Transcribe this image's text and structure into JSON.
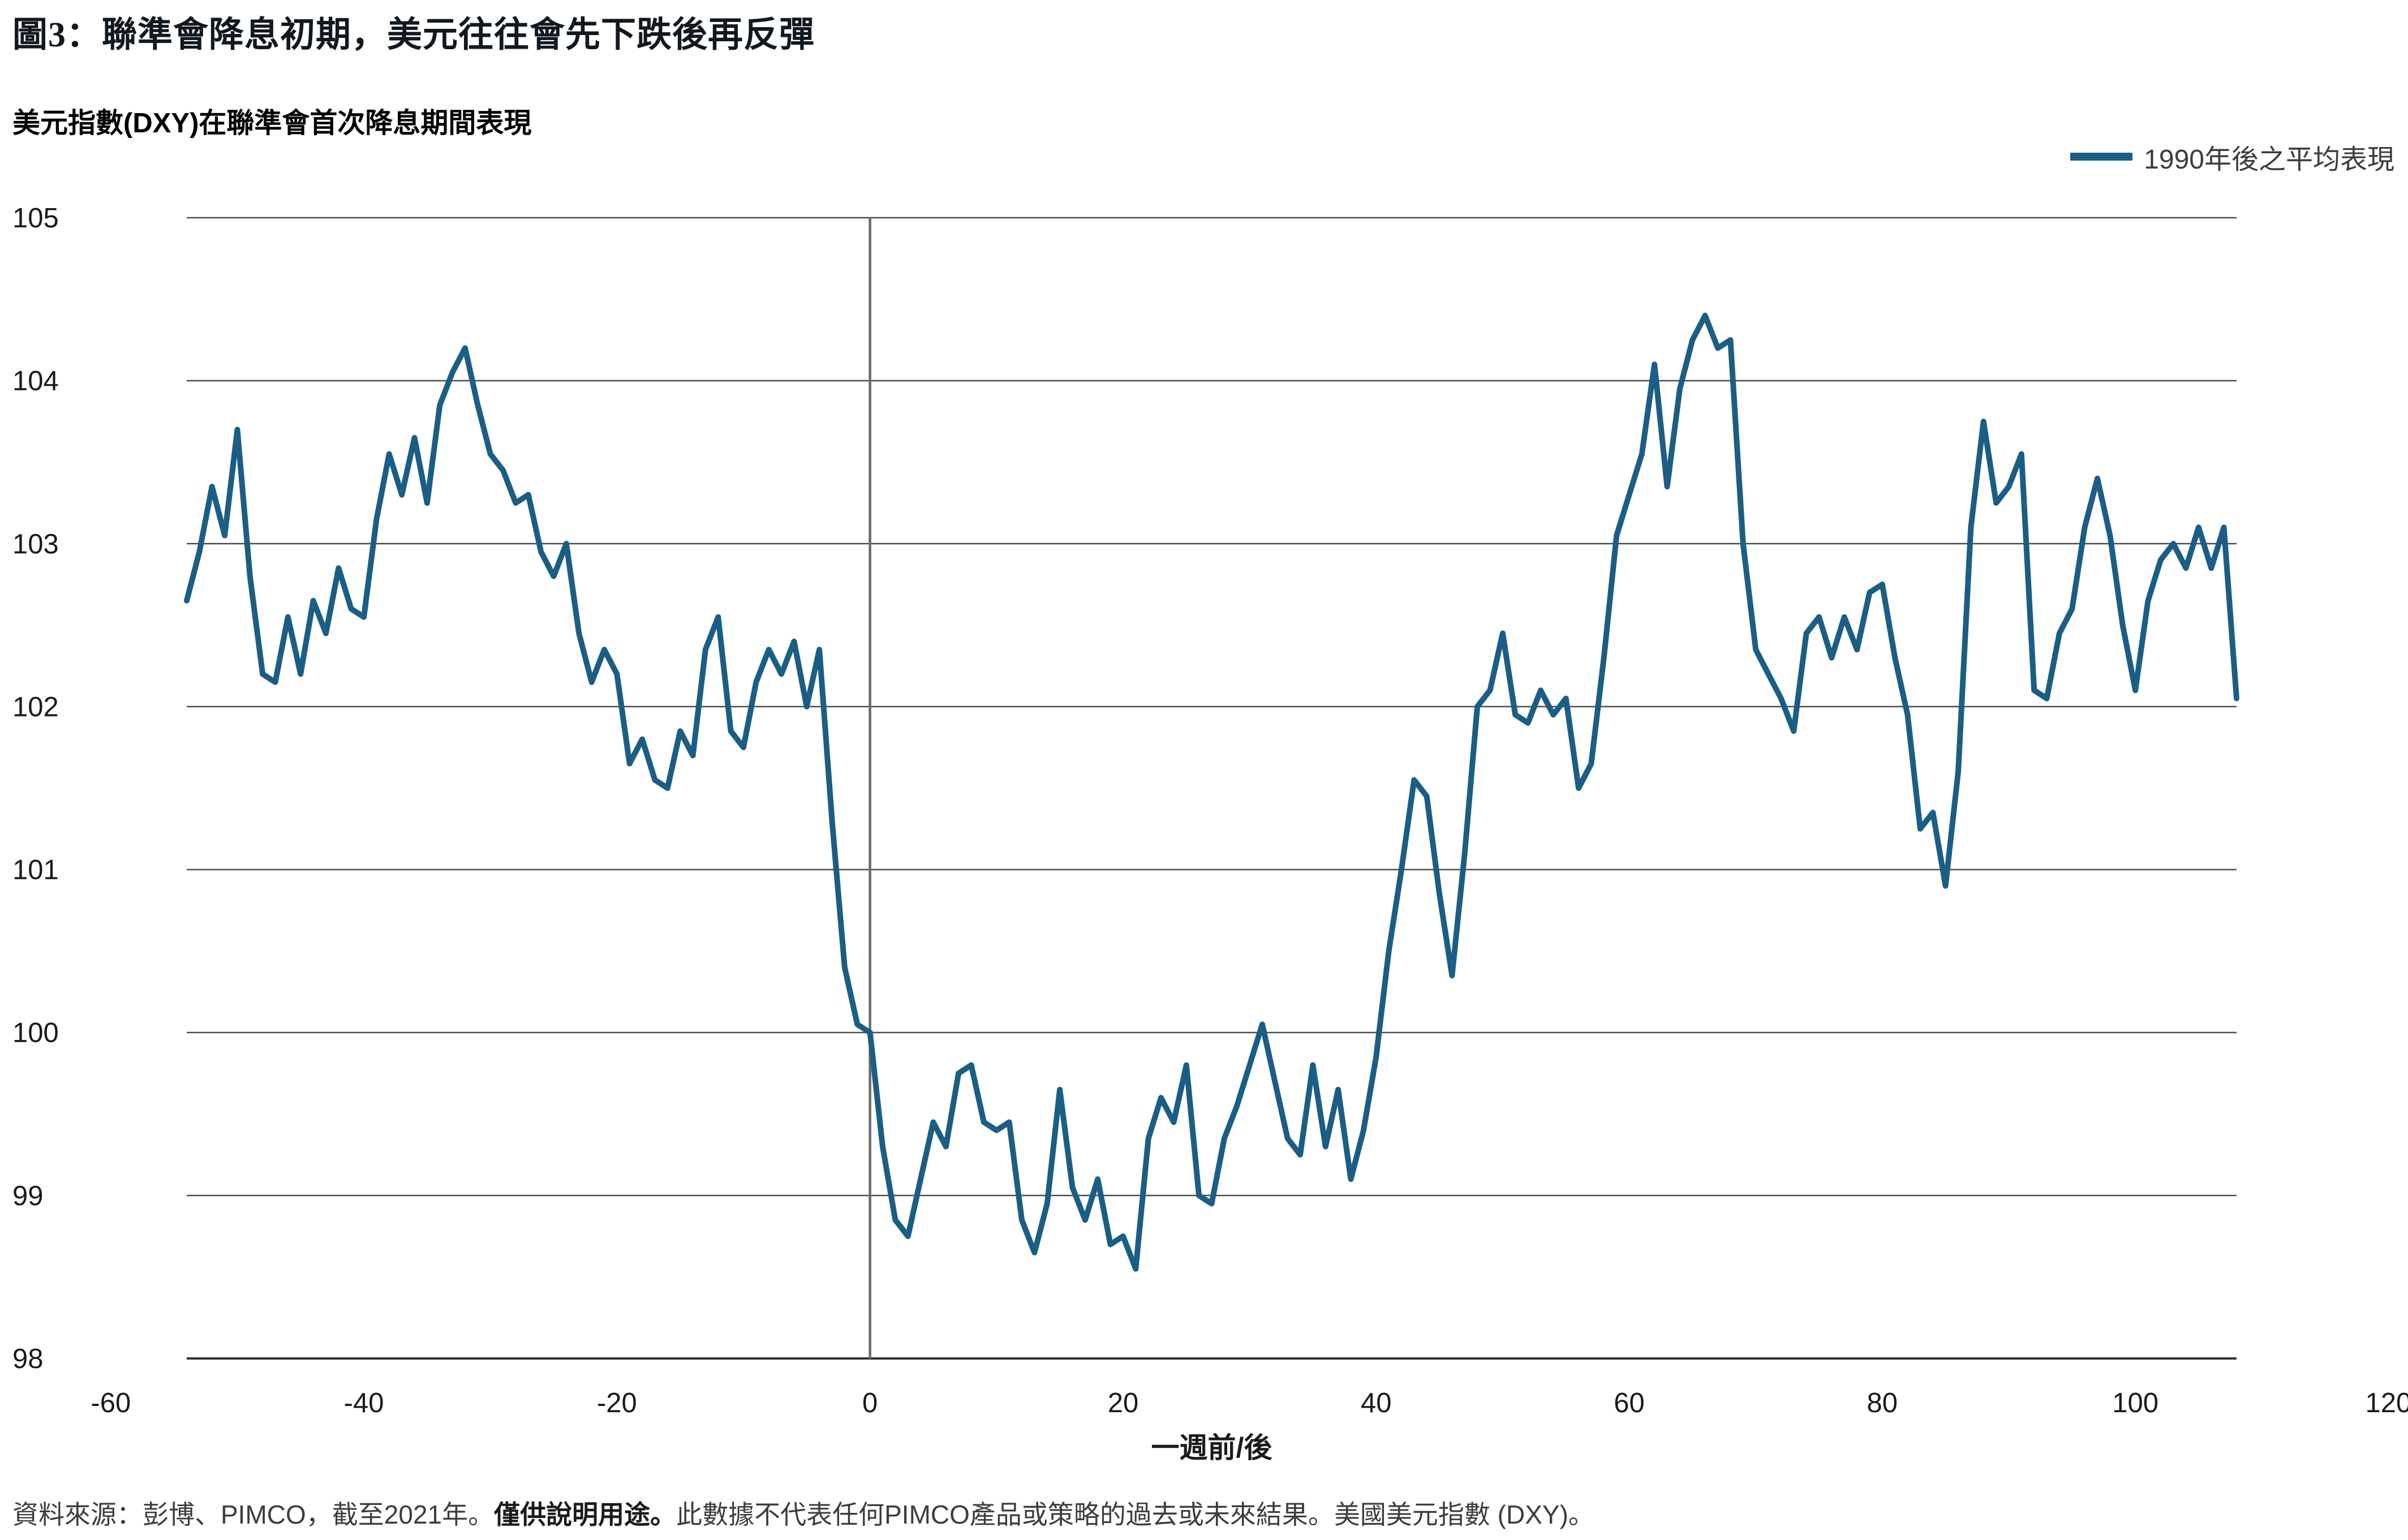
{
  "header": {
    "title": "圖3：聯準會降息初期，美元往往會先下跌後再反彈",
    "subtitle": "美元指數(DXY)在聯準會首次降息期間表現"
  },
  "legend": {
    "label": "1990年後之平均表現"
  },
  "footer": {
    "prefix": "資料來源：彭博、PIMCO，截至2021年。",
    "bold": "僅供說明用途。",
    "suffix": "此數據不代表任何PIMCO產品或策略的過去或未來結果。美國美元指數 (DXY)。"
  },
  "colors": {
    "line": "#1A5E85",
    "grid": "#4d4d4d",
    "axis": "#333333",
    "zero_line": "#6a6a6a",
    "text": "#1a1a1a"
  },
  "chart_data": {
    "type": "line",
    "title": "美元指數(DXY)在聯準會首次降息期間表現",
    "xlabel": "一週前/後",
    "ylabel": "",
    "xlim": [
      -60,
      120
    ],
    "ylim": [
      98,
      105
    ],
    "xticks": [
      -60,
      -40,
      -20,
      0,
      20,
      40,
      60,
      80,
      100,
      120
    ],
    "yticks": [
      98,
      99,
      100,
      101,
      102,
      103,
      104,
      105
    ],
    "grid": "horizontal",
    "zero_line_x": 0,
    "legend_position": "top-right",
    "series": [
      {
        "name": "1990年後之平均表現",
        "x": [
          -54,
          -53,
          -52,
          -51,
          -50,
          -49,
          -48,
          -47,
          -46,
          -45,
          -44,
          -43,
          -42,
          -41,
          -40,
          -39,
          -38,
          -37,
          -36,
          -35,
          -34,
          -33,
          -32,
          -31,
          -30,
          -29,
          -28,
          -27,
          -26,
          -25,
          -24,
          -23,
          -22,
          -21,
          -20,
          -19,
          -18,
          -17,
          -16,
          -15,
          -14,
          -13,
          -12,
          -11,
          -10,
          -9,
          -8,
          -7,
          -6,
          -5,
          -4,
          -3,
          -2,
          -1,
          0,
          1,
          2,
          3,
          4,
          5,
          6,
          7,
          8,
          9,
          10,
          11,
          12,
          13,
          14,
          15,
          16,
          17,
          18,
          19,
          20,
          21,
          22,
          23,
          24,
          25,
          26,
          27,
          28,
          29,
          30,
          31,
          32,
          33,
          34,
          35,
          36,
          37,
          38,
          39,
          40,
          41,
          42,
          43,
          44,
          45,
          46,
          47,
          48,
          49,
          50,
          51,
          52,
          53,
          54,
          55,
          56,
          57,
          58,
          59,
          60,
          61,
          62,
          63,
          64,
          65,
          66,
          67,
          68,
          69,
          70,
          71,
          72,
          73,
          74,
          75,
          76,
          77,
          78,
          79,
          80,
          81,
          82,
          83,
          84,
          85,
          86,
          87,
          88,
          89,
          90,
          91,
          92,
          93,
          94,
          95,
          96,
          97,
          98,
          99,
          100,
          101,
          102,
          103,
          104,
          105,
          106,
          107,
          108
        ],
        "y": [
          102.65,
          102.95,
          103.35,
          103.05,
          103.7,
          102.8,
          102.2,
          102.15,
          102.55,
          102.2,
          102.65,
          102.45,
          102.85,
          102.6,
          102.55,
          103.15,
          103.55,
          103.3,
          103.65,
          103.25,
          103.85,
          104.05,
          104.2,
          103.85,
          103.55,
          103.45,
          103.25,
          103.3,
          102.95,
          102.8,
          103.0,
          102.45,
          102.15,
          102.35,
          102.2,
          101.65,
          101.8,
          101.55,
          101.5,
          101.85,
          101.7,
          102.35,
          102.55,
          101.85,
          101.75,
          102.15,
          102.35,
          102.2,
          102.4,
          102.0,
          102.35,
          101.3,
          100.4,
          100.05,
          100.0,
          99.3,
          98.85,
          98.75,
          99.1,
          99.45,
          99.3,
          99.75,
          99.8,
          99.45,
          99.4,
          99.45,
          98.85,
          98.65,
          98.95,
          99.65,
          99.05,
          98.85,
          99.1,
          98.7,
          98.75,
          98.55,
          99.35,
          99.6,
          99.45,
          99.8,
          99.0,
          98.95,
          99.35,
          99.55,
          99.8,
          100.05,
          99.7,
          99.35,
          99.25,
          99.8,
          99.3,
          99.65,
          99.1,
          99.4,
          99.85,
          100.5,
          101.0,
          101.55,
          101.45,
          100.85,
          100.35,
          101.1,
          102.0,
          102.1,
          102.45,
          101.95,
          101.9,
          102.1,
          101.95,
          102.05,
          101.5,
          101.65,
          102.3,
          103.05,
          103.3,
          103.55,
          104.1,
          103.35,
          103.95,
          104.25,
          104.4,
          104.2,
          104.25,
          103.0,
          102.35,
          102.2,
          102.05,
          101.85,
          102.45,
          102.55,
          102.3,
          102.55,
          102.35,
          102.7,
          102.75,
          102.3,
          101.95,
          101.25,
          101.35,
          100.9,
          101.6,
          103.1,
          103.75,
          103.25,
          103.35,
          103.55,
          102.1,
          102.05,
          102.45,
          102.6,
          103.1,
          103.4,
          103.05,
          102.5,
          102.1,
          102.65,
          102.9,
          103.0,
          102.85,
          103.1,
          102.85,
          103.1,
          102.05
        ]
      }
    ]
  }
}
